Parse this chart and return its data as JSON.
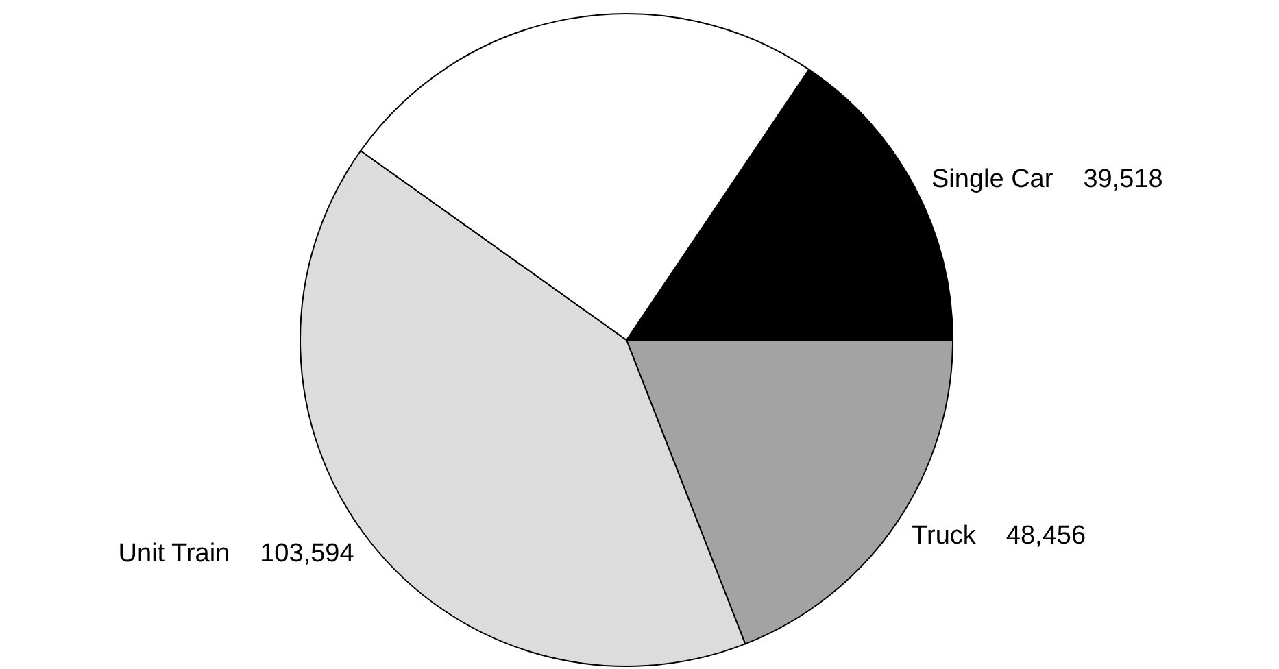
{
  "chart_data": {
    "type": "pie",
    "categories": [
      "Single Car",
      "Truck",
      "Unit Train",
      null
    ],
    "values": [
      39518,
      48456,
      103594,
      62500
    ],
    "colors": [
      "#000000",
      "#a3a3a3",
      "#dcdcdc",
      "#ffffff"
    ],
    "value_labels": [
      "39,518",
      "48,456",
      "103,594",
      null
    ]
  }
}
